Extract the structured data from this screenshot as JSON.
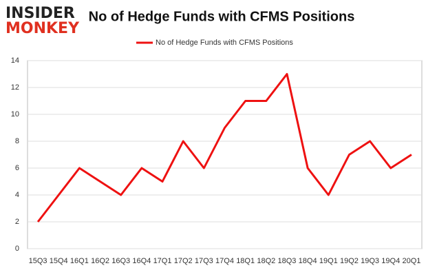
{
  "logo": [
    "INSIDER",
    "MONKEY"
  ],
  "chart_data": {
    "type": "line",
    "title": "No of Hedge Funds with CFMS Positions",
    "categories": [
      "15Q3",
      "15Q4",
      "16Q1",
      "16Q2",
      "16Q3",
      "16Q4",
      "17Q1",
      "17Q2",
      "17Q3",
      "17Q4",
      "18Q1",
      "18Q2",
      "18Q3",
      "18Q4",
      "19Q1",
      "19Q2",
      "19Q3",
      "19Q4",
      "20Q1"
    ],
    "series": [
      {
        "name": "No of Hedge Funds with CFMS Positions",
        "color": "#ee1111",
        "values": [
          2,
          4,
          6,
          5,
          4,
          6,
          5,
          8,
          6,
          9,
          11,
          11,
          13,
          6,
          4,
          7,
          8,
          6,
          7
        ]
      }
    ],
    "ylim": [
      0,
      14
    ],
    "yticks": [
      0,
      2,
      4,
      6,
      8,
      10,
      12,
      14
    ],
    "grid": true,
    "legend": "top"
  }
}
